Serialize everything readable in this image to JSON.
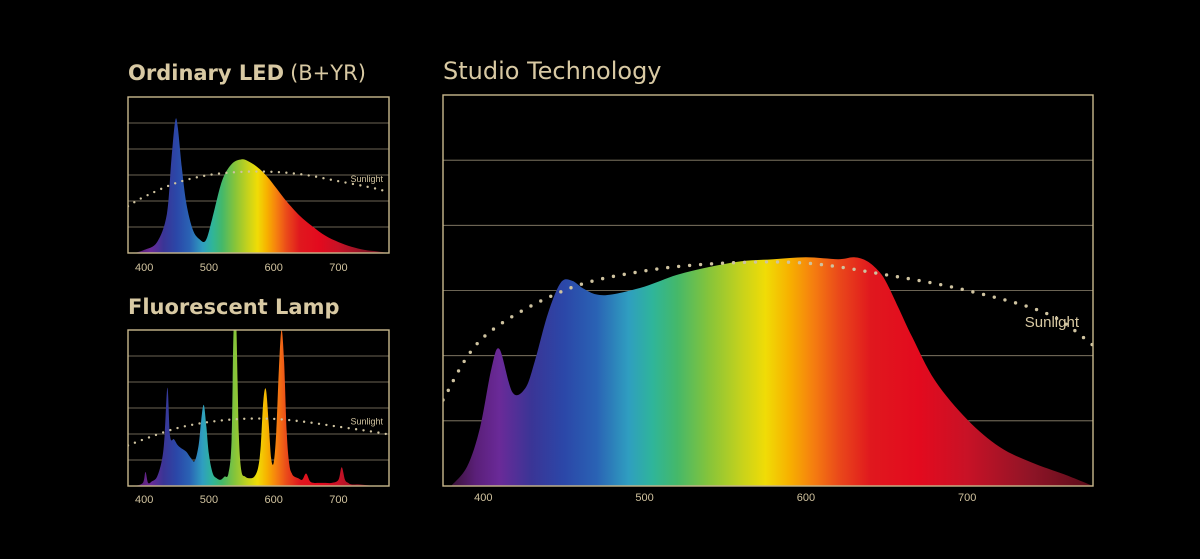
{
  "colors": {
    "gold": "#d8c9a3",
    "background": "#000000",
    "sunlight_dots": "#cfc3a0"
  },
  "chart_data": [
    {
      "id": "led",
      "type": "area",
      "title": "Ordinary LED",
      "title_suffix": "(B+YR)",
      "xlim": [
        375,
        778
      ],
      "ylim": [
        0,
        1
      ],
      "grid": true,
      "gridlines": 6,
      "x_ticks": [
        400,
        500,
        600,
        700
      ],
      "sunlight_label": "Sunlight",
      "spectrum": {
        "name": "",
        "x": [
          385,
          400,
          420,
          435,
          442,
          448,
          452,
          458,
          465,
          475,
          485,
          495,
          505,
          520,
          535,
          550,
          560,
          575,
          590,
          605,
          620,
          640,
          660,
          680,
          700,
          720,
          740,
          760,
          778
        ],
        "y": [
          0.0,
          0.02,
          0.07,
          0.25,
          0.6,
          0.85,
          0.8,
          0.55,
          0.32,
          0.15,
          0.09,
          0.08,
          0.22,
          0.46,
          0.57,
          0.6,
          0.59,
          0.55,
          0.49,
          0.41,
          0.33,
          0.24,
          0.17,
          0.11,
          0.07,
          0.04,
          0.02,
          0.01,
          0.0
        ]
      },
      "sunlight": {
        "x": [
          375,
          400,
          450,
          500,
          550,
          600,
          650,
          700,
          750,
          778
        ],
        "y": [
          0.3,
          0.36,
          0.45,
          0.5,
          0.52,
          0.52,
          0.5,
          0.46,
          0.42,
          0.39
        ]
      }
    },
    {
      "id": "fluorescent",
      "type": "area",
      "title": "Fluorescent Lamp",
      "xlim": [
        375,
        778
      ],
      "ylim": [
        0,
        1
      ],
      "grid": true,
      "gridlines": 6,
      "x_ticks": [
        400,
        500,
        600,
        700
      ],
      "sunlight_label": "Sunlight",
      "spectrum": {
        "name": "",
        "x": [
          385,
          398,
          402,
          406,
          412,
          420,
          428,
          432,
          436,
          440,
          446,
          452,
          458,
          465,
          472,
          478,
          484,
          488,
          492,
          496,
          500,
          506,
          512,
          518,
          524,
          530,
          535,
          538,
          542,
          546,
          550,
          556,
          562,
          570,
          576,
          580,
          584,
          588,
          592,
          596,
          600,
          604,
          608,
          612,
          616,
          620,
          624,
          628,
          632,
          638,
          644,
          650,
          656,
          662,
          670,
          680,
          690,
          700,
          705,
          710,
          715,
          720,
          730,
          745,
          760,
          778
        ],
        "y": [
          0.0,
          0.02,
          0.09,
          0.02,
          0.03,
          0.06,
          0.18,
          0.35,
          0.63,
          0.32,
          0.3,
          0.26,
          0.24,
          0.22,
          0.18,
          0.16,
          0.26,
          0.42,
          0.52,
          0.38,
          0.2,
          0.08,
          0.05,
          0.04,
          0.06,
          0.08,
          0.3,
          1.0,
          1.05,
          0.35,
          0.1,
          0.06,
          0.05,
          0.06,
          0.12,
          0.26,
          0.55,
          0.62,
          0.42,
          0.18,
          0.15,
          0.35,
          0.75,
          1.0,
          0.8,
          0.35,
          0.14,
          0.08,
          0.06,
          0.05,
          0.04,
          0.08,
          0.03,
          0.02,
          0.02,
          0.02,
          0.02,
          0.04,
          0.12,
          0.04,
          0.02,
          0.01,
          0.01,
          0.005,
          0.0,
          0.0
        ]
      },
      "sunlight": {
        "x": [
          375,
          400,
          450,
          500,
          550,
          600,
          650,
          700,
          750,
          778
        ],
        "y": [
          0.26,
          0.3,
          0.37,
          0.41,
          0.43,
          0.43,
          0.41,
          0.38,
          0.35,
          0.33
        ]
      }
    },
    {
      "id": "studio",
      "type": "area",
      "title": "Studio Technology",
      "xlim": [
        375,
        778
      ],
      "ylim": [
        0,
        1
      ],
      "grid": true,
      "gridlines": 6,
      "x_ticks": [
        400,
        500,
        600,
        700
      ],
      "sunlight_label": "Sunlight",
      "spectrum": {
        "name": "",
        "x": [
          380,
          390,
          398,
          405,
          410,
          418,
          426,
          432,
          440,
          448,
          455,
          462,
          470,
          480,
          500,
          520,
          540,
          560,
          580,
          600,
          620,
          630,
          638,
          645,
          650,
          658,
          666,
          680,
          700,
          720,
          740,
          760,
          778
        ],
        "y": [
          0.0,
          0.05,
          0.15,
          0.3,
          0.35,
          0.24,
          0.25,
          0.32,
          0.44,
          0.52,
          0.525,
          0.505,
          0.49,
          0.49,
          0.51,
          0.54,
          0.56,
          0.575,
          0.58,
          0.585,
          0.58,
          0.585,
          0.575,
          0.55,
          0.52,
          0.45,
          0.38,
          0.27,
          0.17,
          0.1,
          0.06,
          0.03,
          0.0
        ]
      },
      "sunlight": {
        "x": [
          375,
          400,
          450,
          500,
          550,
          600,
          650,
          700,
          750,
          778
        ],
        "y": [
          0.22,
          0.38,
          0.5,
          0.55,
          0.57,
          0.57,
          0.54,
          0.5,
          0.44,
          0.36
        ]
      }
    }
  ]
}
